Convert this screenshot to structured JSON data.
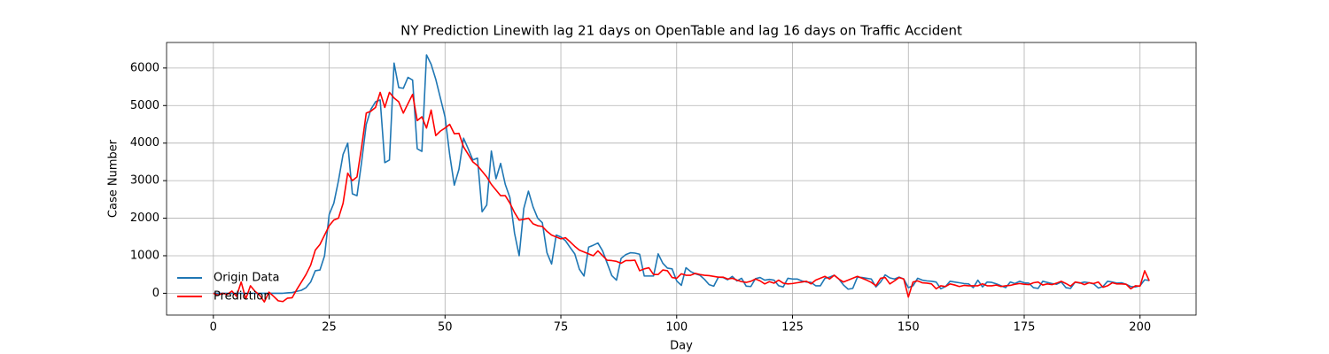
{
  "chart_data": {
    "type": "line",
    "title": "NY Prediction Linewith lag 21 days on OpenTable and lag 16 days on Traffic Accident",
    "x_label": "Day",
    "y_label": "Case Number",
    "xlim": [
      -10.1,
      212.1
    ],
    "ylim": [
      -580,
      6680
    ],
    "xticks": [
      0,
      25,
      50,
      75,
      100,
      125,
      150,
      175,
      200
    ],
    "yticks": [
      0,
      1000,
      2000,
      3000,
      4000,
      5000,
      6000
    ],
    "grid": true,
    "legend": "lower left",
    "x": [
      0,
      1,
      2,
      3,
      4,
      5,
      6,
      7,
      8,
      9,
      10,
      11,
      12,
      13,
      14,
      15,
      16,
      17,
      18,
      19,
      20,
      21,
      22,
      23,
      24,
      25,
      26,
      27,
      28,
      29,
      30,
      31,
      32,
      33,
      34,
      35,
      36,
      37,
      38,
      39,
      40,
      41,
      42,
      43,
      44,
      45,
      46,
      47,
      48,
      49,
      50,
      51,
      52,
      53,
      54,
      55,
      56,
      57,
      58,
      59,
      60,
      61,
      62,
      63,
      64,
      65,
      66,
      67,
      68,
      69,
      70,
      71,
      72,
      73,
      74,
      75,
      76,
      77,
      78,
      79,
      80,
      81,
      82,
      83,
      84,
      85,
      86,
      87,
      88,
      89,
      90,
      91,
      92,
      93,
      94,
      95,
      96,
      97,
      98,
      99,
      100,
      101,
      102,
      103,
      104,
      105,
      106,
      107,
      108,
      109,
      110,
      111,
      112,
      113,
      114,
      115,
      116,
      117,
      118,
      119,
      120,
      121,
      122,
      123,
      124,
      125,
      126,
      127,
      128,
      129,
      130,
      131,
      132,
      133,
      134,
      135,
      136,
      137,
      138,
      139,
      140,
      141,
      142,
      143,
      144,
      145,
      146,
      147,
      148,
      149,
      150,
      151,
      152,
      153,
      154,
      155,
      156,
      157,
      158,
      159,
      160,
      161,
      162,
      163,
      164,
      165,
      166,
      167,
      168,
      169,
      170,
      171,
      172,
      173,
      174,
      175,
      176,
      177,
      178,
      179,
      180,
      181,
      182,
      183,
      184,
      185,
      186,
      187,
      188,
      189,
      190,
      191,
      192,
      193,
      194,
      195,
      196,
      197,
      198,
      199,
      200,
      201,
      202
    ],
    "series": [
      {
        "name": "Origin Data",
        "color": "#1f77b4",
        "values": [
          0,
          0,
          0,
          0,
          0,
          0,
          0,
          0,
          0,
          0,
          0,
          0,
          0,
          0,
          0,
          0,
          10,
          20,
          50,
          80,
          150,
          300,
          600,
          620,
          1000,
          2100,
          2400,
          3000,
          3700,
          4000,
          2650,
          2600,
          3500,
          4500,
          4900,
          5100,
          5150,
          3480,
          3550,
          6130,
          5480,
          5460,
          5750,
          5680,
          3850,
          3780,
          6350,
          6100,
          5700,
          5200,
          4700,
          3700,
          2880,
          3300,
          4130,
          3850,
          3550,
          3600,
          2170,
          2350,
          3790,
          3050,
          3460,
          2900,
          2550,
          1600,
          1000,
          2260,
          2720,
          2300,
          2000,
          1880,
          1080,
          780,
          1550,
          1500,
          1400,
          1220,
          1050,
          640,
          460,
          1230,
          1280,
          1340,
          1130,
          800,
          470,
          350,
          930,
          1030,
          1080,
          1070,
          1040,
          460,
          460,
          460,
          1050,
          800,
          670,
          650,
          330,
          210,
          680,
          580,
          520,
          480,
          370,
          230,
          190,
          430,
          420,
          360,
          450,
          330,
          400,
          190,
          180,
          390,
          420,
          350,
          370,
          350,
          200,
          170,
          400,
          380,
          380,
          330,
          300,
          290,
          200,
          200,
          400,
          430,
          480,
          380,
          220,
          110,
          130,
          430,
          420,
          400,
          380,
          170,
          300,
          490,
          410,
          380,
          430,
          380,
          150,
          200,
          400,
          350,
          330,
          320,
          300,
          120,
          180,
          320,
          300,
          280,
          260,
          250,
          150,
          350,
          170,
          300,
          290,
          250,
          200,
          150,
          300,
          260,
          320,
          280,
          270,
          150,
          130,
          320,
          290,
          260,
          240,
          300,
          150,
          130,
          300,
          270,
          300,
          280,
          250,
          140,
          180,
          320,
          300,
          270,
          280,
          240,
          180,
          170,
          200,
          360,
          340
        ]
      },
      {
        "name": "Prediction",
        "color": "#ff0000",
        "values": [
          0,
          -50,
          0,
          -30,
          60,
          -80,
          300,
          -150,
          200,
          50,
          -50,
          -230,
          30,
          -80,
          -200,
          -220,
          -130,
          -120,
          100,
          300,
          500,
          750,
          1150,
          1300,
          1550,
          1800,
          1950,
          2000,
          2400,
          3200,
          3000,
          3100,
          3900,
          4800,
          4850,
          4950,
          5350,
          4950,
          5350,
          5200,
          5100,
          4800,
          5050,
          5300,
          4600,
          4700,
          4400,
          4880,
          4200,
          4320,
          4400,
          4500,
          4250,
          4260,
          3900,
          3700,
          3500,
          3400,
          3250,
          3100,
          2900,
          2750,
          2600,
          2600,
          2400,
          2150,
          1950,
          1970,
          2000,
          1850,
          1800,
          1780,
          1650,
          1550,
          1500,
          1450,
          1480,
          1370,
          1250,
          1150,
          1100,
          1050,
          1000,
          1130,
          1000,
          880,
          870,
          850,
          800,
          870,
          870,
          880,
          600,
          650,
          680,
          500,
          500,
          620,
          600,
          420,
          400,
          520,
          480,
          480,
          530,
          500,
          480,
          470,
          450,
          430,
          430,
          380,
          400,
          350,
          310,
          290,
          320,
          380,
          330,
          250,
          310,
          270,
          350,
          270,
          250,
          260,
          280,
          300,
          320,
          250,
          350,
          400,
          450,
          380,
          480,
          380,
          300,
          350,
          400,
          450,
          400,
          350,
          290,
          200,
          400,
          420,
          250,
          330,
          420,
          380,
          -100,
          300,
          330,
          280,
          270,
          250,
          120,
          200,
          180,
          250,
          220,
          180,
          210,
          200,
          200,
          200,
          250,
          200,
          200,
          220,
          180,
          200,
          210,
          240,
          260,
          240,
          230,
          280,
          300,
          220,
          250,
          230,
          270,
          320,
          260,
          190,
          300,
          280,
          230,
          280,
          260,
          300,
          160,
          200,
          280,
          250,
          250,
          240,
          120,
          200,
          190,
          600,
          330
        ]
      }
    ]
  }
}
